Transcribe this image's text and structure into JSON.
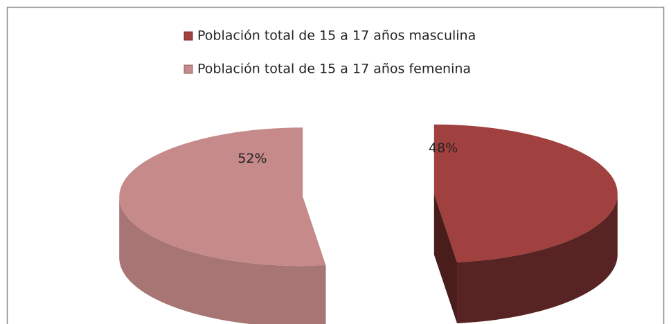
{
  "chart_data": {
    "type": "pie3d",
    "categories": [
      "Población total de 15 a 17 años masculina",
      "Población total de 15 a 17 años femenina"
    ],
    "values": [
      48,
      52
    ],
    "value_labels": [
      "48%",
      "52%"
    ],
    "colors": [
      "#a0403f",
      "#c58a89"
    ],
    "legend": "top"
  }
}
